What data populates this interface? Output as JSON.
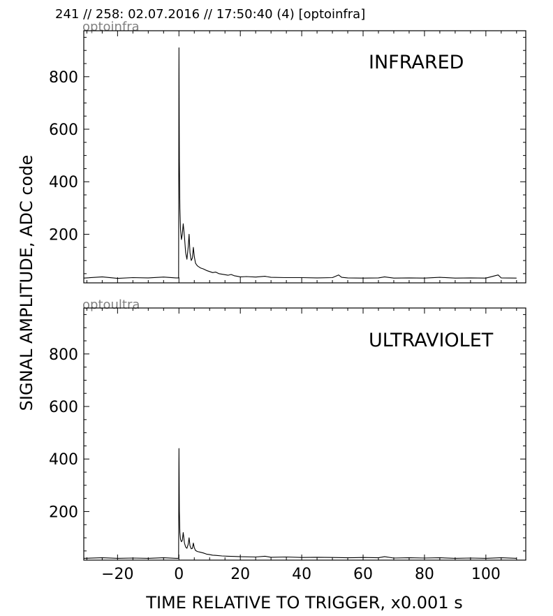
{
  "header": {
    "title": "241 // 258:   02.07.2016 // 17:50:40 (4)  [optoinfra]"
  },
  "axes": {
    "xlabel": "TIME RELATIVE TO TRIGGER,   x0.001 s",
    "ylabel": "SIGNAL AMPLITUDE,  ADC code"
  },
  "chart_data": [
    {
      "type": "line",
      "panel_label": "optoinfra",
      "channel_label": "INFRARED",
      "xlim": [
        -31,
        113
      ],
      "ylim": [
        15,
        975
      ],
      "xticks": [
        -20,
        0,
        20,
        40,
        60,
        80,
        100
      ],
      "xtick_labels": [
        "−20",
        "0",
        "20",
        "40",
        "60",
        "80",
        "100"
      ],
      "yticks": [
        200,
        400,
        600,
        800
      ],
      "ytick_labels": [
        "200",
        "400",
        "600",
        "800"
      ],
      "baseline": 33,
      "series": [
        {
          "x": [
            -31,
            -25,
            -20,
            -15,
            -10,
            -5,
            -1,
            -0.1,
            0,
            0.15,
            0.3,
            0.5,
            0.8,
            1.1,
            1.4,
            1.8,
            2.2,
            2.6,
            3.0,
            3.3,
            3.6,
            4.0,
            4.4,
            4.7,
            5.0,
            5.4,
            6,
            7,
            8,
            9,
            10,
            11,
            12,
            13,
            14,
            15,
            16,
            17,
            18,
            19,
            20,
            22,
            25,
            28,
            30,
            35,
            40,
            45,
            50,
            52,
            53,
            55,
            60,
            65,
            67,
            70,
            75,
            80,
            85,
            90,
            95,
            100,
            104,
            105,
            110
          ],
          "y": [
            33,
            38,
            32,
            35,
            34,
            37,
            34,
            34,
            910,
            480,
            300,
            220,
            180,
            200,
            240,
            190,
            130,
            105,
            150,
            200,
            130,
            100,
            110,
            150,
            115,
            90,
            80,
            72,
            68,
            62,
            58,
            54,
            56,
            50,
            48,
            46,
            44,
            47,
            42,
            40,
            38,
            39,
            37,
            40,
            36,
            35,
            35,
            34,
            35,
            45,
            36,
            34,
            33,
            34,
            38,
            33,
            34,
            33,
            36,
            33,
            34,
            33,
            45,
            34,
            33
          ]
        }
      ]
    },
    {
      "type": "line",
      "panel_label": "optoultra",
      "channel_label": "ULTRAVIOLET",
      "xlim": [
        -31,
        113
      ],
      "ylim": [
        15,
        975
      ],
      "xticks": [
        -20,
        0,
        20,
        40,
        60,
        80,
        100
      ],
      "xtick_labels": [
        "−20",
        "0",
        "20",
        "40",
        "60",
        "80",
        "100"
      ],
      "yticks": [
        200,
        400,
        600,
        800
      ],
      "ytick_labels": [
        "200",
        "400",
        "600",
        "800"
      ],
      "baseline": 22,
      "series": [
        {
          "x": [
            -31,
            -25,
            -20,
            -15,
            -10,
            -5,
            -1,
            -0.1,
            0,
            0.15,
            0.3,
            0.5,
            0.8,
            1.1,
            1.4,
            1.8,
            2.2,
            2.6,
            3.0,
            3.3,
            3.6,
            4.0,
            4.4,
            4.7,
            5.0,
            5.4,
            6,
            7,
            8,
            9,
            10,
            11,
            12,
            14,
            16,
            18,
            20,
            25,
            28,
            30,
            35,
            40,
            45,
            50,
            55,
            60,
            65,
            67,
            70,
            75,
            80,
            85,
            90,
            95,
            100,
            105,
            110
          ],
          "y": [
            22,
            24,
            22,
            23,
            22,
            24,
            22,
            22,
            440,
            200,
            120,
            95,
            85,
            90,
            120,
            80,
            65,
            60,
            75,
            100,
            70,
            58,
            60,
            80,
            62,
            52,
            48,
            45,
            42,
            38,
            36,
            34,
            33,
            31,
            30,
            29,
            28,
            27,
            30,
            26,
            27,
            25,
            26,
            25,
            24,
            25,
            24,
            28,
            23,
            24,
            23,
            24,
            22,
            23,
            22,
            24,
            22
          ]
        }
      ]
    }
  ]
}
